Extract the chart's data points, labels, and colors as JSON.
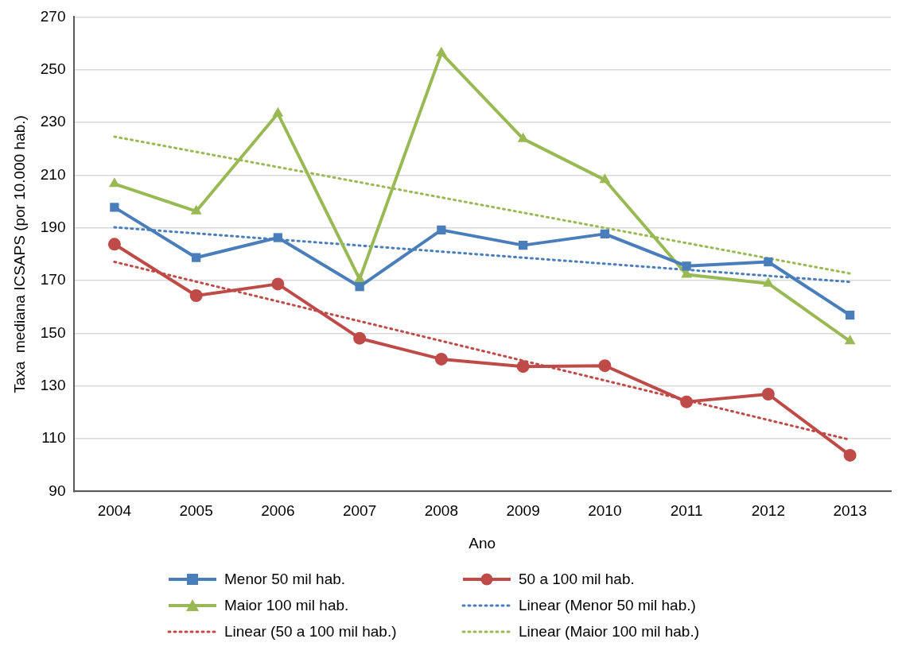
{
  "chart_data": {
    "type": "line",
    "xlabel": "Ano",
    "ylabel": "Taxa  mediana ICSAPS (por 10.000 hab.)",
    "categories": [
      "2004",
      "2005",
      "2006",
      "2007",
      "2008",
      "2009",
      "2010",
      "2011",
      "2012",
      "2013"
    ],
    "series": [
      {
        "name": "Menor 50 mil hab.",
        "color": "#4a7ebb",
        "marker": "square",
        "line_style": "solid",
        "values": [
          197.8,
          178.7,
          186.3,
          167.7,
          189.2,
          183.4,
          187.7,
          175.5,
          177.1,
          156.9
        ]
      },
      {
        "name": "50 a 100 mil hab.",
        "color": "#be4b48",
        "marker": "circle",
        "line_style": "solid",
        "values": [
          183.8,
          164.3,
          168.7,
          148.1,
          140.2,
          137.4,
          137.7,
          124.0,
          126.9,
          103.7
        ]
      },
      {
        "name": "Maior 100 mil hab.",
        "color": "#98b954",
        "marker": "triangle",
        "line_style": "solid",
        "values": [
          206.7,
          196.3,
          233.4,
          170.5,
          256.3,
          223.8,
          208.2,
          172.3,
          168.9,
          147.0
        ]
      },
      {
        "name": "Linear (Menor 50 mil hab.)",
        "color": "#4a7ebb",
        "marker": "none",
        "line_style": "dotted",
        "values": [
          190.2,
          null,
          null,
          null,
          null,
          null,
          null,
          null,
          null,
          169.5
        ]
      },
      {
        "name": "Linear (50 a 100 mil hab.)",
        "color": "#be4b48",
        "marker": "none",
        "line_style": "dotted",
        "values": [
          177.1,
          null,
          null,
          null,
          null,
          null,
          null,
          null,
          null,
          109.6
        ]
      },
      {
        "name": "Linear (Maior 100 mil hab.)",
        "color": "#98b954",
        "marker": "none",
        "line_style": "dotted",
        "values": [
          224.6,
          null,
          null,
          null,
          null,
          null,
          null,
          null,
          null,
          172.7
        ]
      }
    ],
    "ylim": [
      90,
      270
    ],
    "yticks": [
      90,
      110,
      130,
      150,
      170,
      190,
      210,
      230,
      250,
      270
    ],
    "grid": "y",
    "legend": "bottom"
  }
}
